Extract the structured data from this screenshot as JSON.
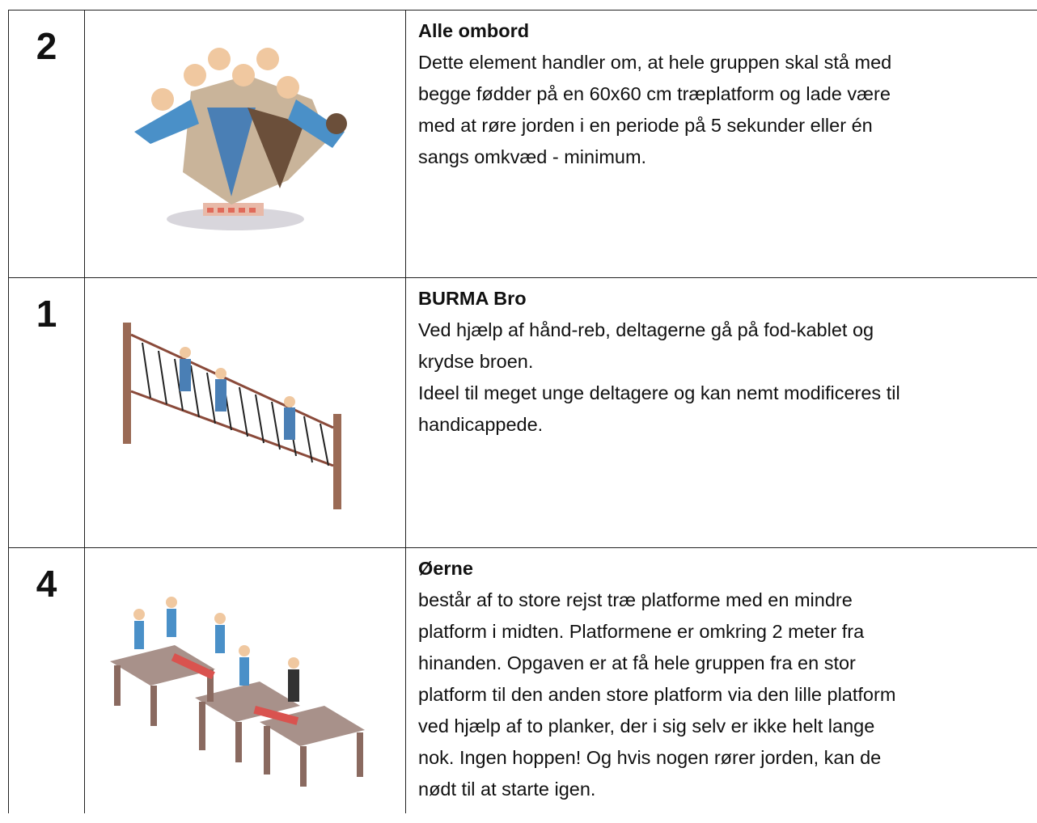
{
  "table": {
    "rows": [
      {
        "number": "2",
        "title": "Alle ombord",
        "lines": [
          "Dette element handler om, at hele gruppen skal stå med",
          "begge fødder på en 60x60 cm træplatform og lade være",
          "med at røre jorden i en periode på 5 sekunder eller én",
          "sangs omkvæd - minimum."
        ]
      },
      {
        "number": "1",
        "title": "BURMA Bro",
        "lines": [
          "Ved hjælp af hånd-reb, deltagerne gå på fod-kablet og",
          "krydse broen.",
          "Ideel til meget unge deltagere og kan nemt modificeres til",
          "handicappede."
        ]
      },
      {
        "number": "4",
        "title": "Øerne",
        "lines": [
          "består af to store rejst træ platforme med en mindre",
          "platform i midten. Platformene er omkring 2 meter fra",
          "hinanden. Opgaven er at få hele gruppen fra en stor",
          "platform til den anden store platform via den lille platform",
          "ved hjælp af to planker, der i sig selv er ikke helt lange",
          "nok. Ingen hoppen! Og hvis nogen rører jorden, kan de",
          "nødt til at starte igen."
        ]
      }
    ]
  }
}
